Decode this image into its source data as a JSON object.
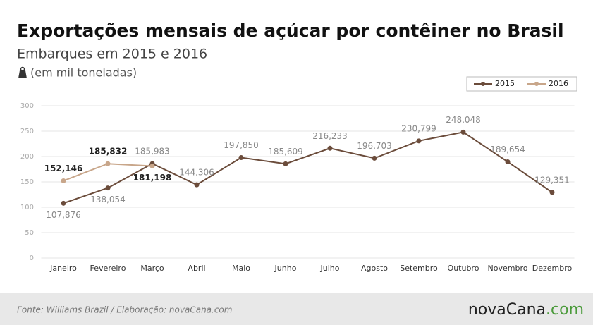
{
  "chart_data": {
    "type": "line",
    "title": "Exportações mensais de açúcar por contêiner no Brasil",
    "subtitle": "Embarques em 2015 e 2016",
    "unit_note": "(em mil toneladas)",
    "categories": [
      "Janeiro",
      "Fevereiro",
      "Março",
      "Abril",
      "Maio",
      "Junho",
      "Julho",
      "Agosto",
      "Setembro",
      "Outubro",
      "Novembro",
      "Dezembro"
    ],
    "series": [
      {
        "name": "2015",
        "color": "#6b4c3b",
        "values": [
          107.876,
          138.054,
          185.983,
          144.306,
          197.85,
          185.609,
          216.233,
          196.703,
          230.799,
          248.048,
          189.654,
          129.351
        ],
        "value_labels": [
          "107,876",
          "138,054",
          "185,983",
          "144,306",
          "197,850",
          "185,609",
          "216,233",
          "196,703",
          "230,799",
          "248,048",
          "189,654",
          "129,351"
        ]
      },
      {
        "name": "2016",
        "color": "#c8a68a",
        "values": [
          152.146,
          185.832,
          181.198,
          null,
          null,
          null,
          null,
          null,
          null,
          null,
          null,
          null
        ],
        "value_labels": [
          "152,146",
          "185,832",
          "181,198",
          null,
          null,
          null,
          null,
          null,
          null,
          null,
          null,
          null
        ]
      }
    ],
    "ylim": [
      0,
      300
    ],
    "yticks": [
      0,
      50,
      100,
      150,
      200,
      250,
      300
    ],
    "grid": true,
    "legend": "top-right",
    "source": "Fonte: Williams Brazil  / Elaboração: novaCana.com",
    "logo": [
      "novaCana",
      ".com"
    ]
  }
}
